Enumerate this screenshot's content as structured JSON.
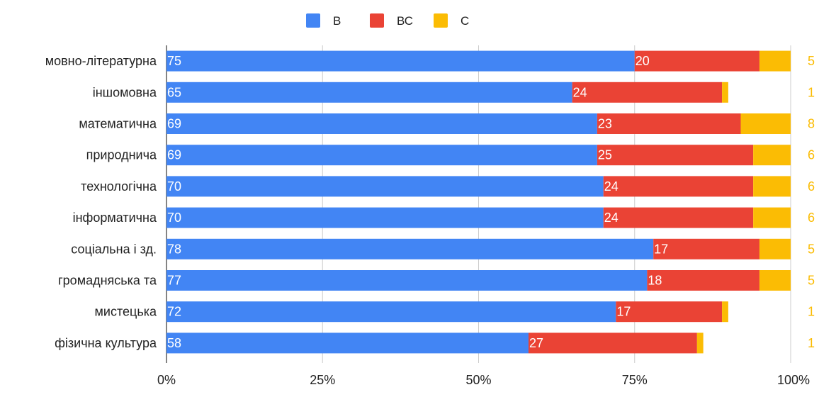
{
  "chart_data": {
    "type": "bar",
    "orientation": "horizontal",
    "stacked": "percent",
    "legend_position": "top",
    "grid": true,
    "title": "",
    "xlabel": "",
    "ylabel": "",
    "xlim": [
      0,
      100
    ],
    "x_ticks": [
      "0%",
      "25%",
      "50%",
      "75%",
      "100%"
    ],
    "categories": [
      "мовно-літературна",
      "іншомовна",
      "математична",
      "природнича",
      "технологічна",
      "інформатична",
      "соціальна і зд.",
      "громадняська та",
      "мистецька",
      "фізична культура"
    ],
    "series": [
      {
        "name": "В",
        "color": "#4285F4",
        "values": [
          75,
          65,
          69,
          69,
          70,
          70,
          78,
          77,
          72,
          58
        ]
      },
      {
        "name": "ВС",
        "color": "#EA4335",
        "values": [
          20,
          24,
          23,
          25,
          24,
          24,
          17,
          18,
          17,
          27
        ]
      },
      {
        "name": "С",
        "color": "#FBBC04",
        "values": [
          5,
          1,
          8,
          6,
          6,
          6,
          5,
          5,
          1,
          1
        ]
      }
    ]
  }
}
